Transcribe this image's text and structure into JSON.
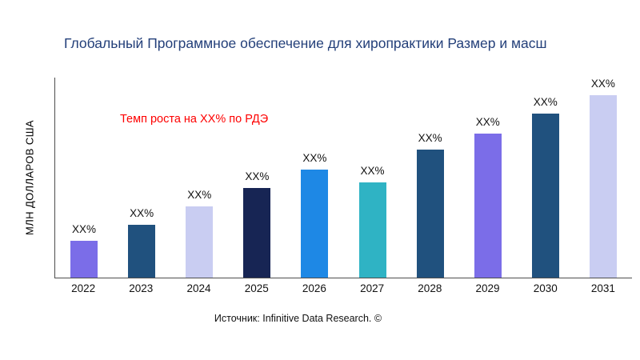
{
  "header": {
    "title": "Глобальный Программное обеспечение для хиропрактики Размер и масш"
  },
  "chart_data": {
    "type": "bar",
    "title": "Глобальный Программное обеспечение для хиропрактики Размер и масш",
    "ylabel": "МЛН ДОЛЛАРОВ США",
    "xlabel": "",
    "categories": [
      "2022",
      "2023",
      "2024",
      "2025",
      "2026",
      "2027",
      "2028",
      "2029",
      "2030",
      "2031"
    ],
    "values_relative": [
      20,
      29,
      39,
      49,
      59,
      52,
      70,
      79,
      90,
      100
    ],
    "bar_labels": [
      "XX%",
      "XX%",
      "XX%",
      "XX%",
      "XX%",
      "XX%",
      "XX%",
      "XX%",
      "XX%",
      "XX%"
    ],
    "bar_colors": [
      "#7b6de8",
      "#20517e",
      "#c9cdf2",
      "#172554",
      "#1e88e5",
      "#2fb3c4",
      "#20517e",
      "#7b6de8",
      "#20517e",
      "#c9cdf2"
    ],
    "annotation": {
      "text": "Темп роста на XX% по РДЭ",
      "color": "#fe0000"
    },
    "grid": false,
    "legend": false,
    "source": "Источник: Infinitive Data Research. ©"
  },
  "footer": {
    "source": "Источник: Infinitive Data Research. ©"
  }
}
